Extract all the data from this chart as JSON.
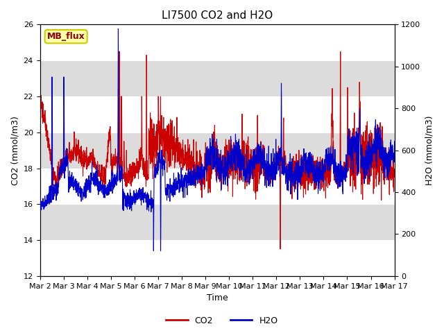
{
  "title": "LI7500 CO2 and H2O",
  "xlabel": "Time",
  "ylabel_left": "CO2 (mmol/m3)",
  "ylabel_right": "H2O (mmol/m3)",
  "ylim_left": [
    12,
    26
  ],
  "ylim_right": [
    0,
    1200
  ],
  "yticks_left": [
    12,
    14,
    16,
    18,
    20,
    22,
    24,
    26
  ],
  "yticks_right": [
    0,
    200,
    400,
    600,
    800,
    1000,
    1200
  ],
  "xtick_labels": [
    "Mar 2",
    "Mar 3",
    "Mar 4",
    "Mar 5",
    "Mar 6",
    "Mar 7",
    "Mar 8",
    "Mar 9",
    "Mar 10",
    "Mar 11",
    "Mar 12",
    "Mar 13",
    "Mar 14",
    "Mar 15",
    "Mar 16",
    "Mar 17"
  ],
  "co2_color": "#CC0000",
  "h2o_color": "#0000CC",
  "linewidth": 0.8,
  "band_color_light": "#DCDCDC",
  "band_color_white": "#EBEBEB",
  "annotation_text": "MB_flux",
  "legend_co2": "CO2",
  "legend_h2o": "H2O",
  "title_fontsize": 11,
  "axis_fontsize": 9,
  "tick_fontsize": 8
}
